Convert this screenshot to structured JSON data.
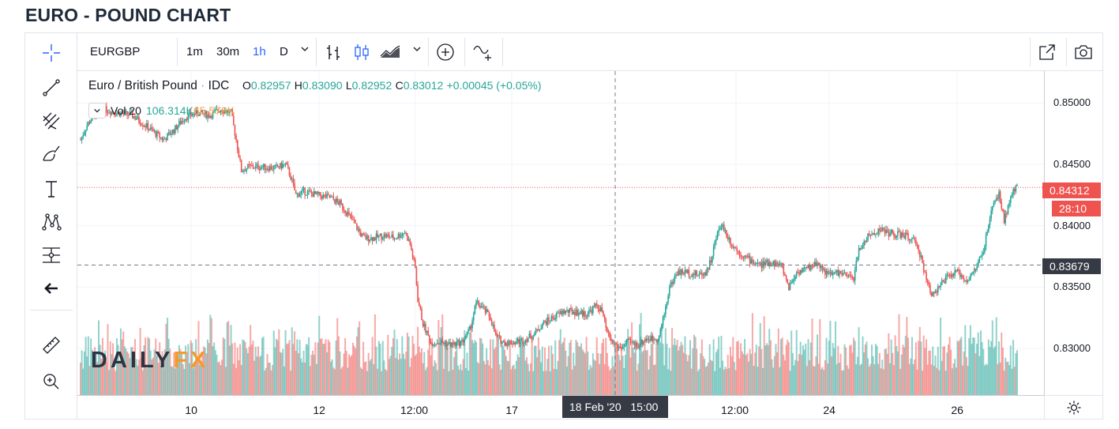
{
  "page_title": "EURO - POUND CHART",
  "toolbar": {
    "symbol": "EURGBP",
    "intervals": [
      "1m",
      "30m",
      "1h",
      "D"
    ],
    "active_interval": "1h",
    "icons": [
      "crosshair-icon",
      "trend-line-icon",
      "fib-icon",
      "brush-icon",
      "text-icon",
      "pattern-icon",
      "measure-icon",
      "back-arrow-icon",
      "ruler-icon",
      "zoom-in-icon",
      "bar-style-icon",
      "candle-style-icon",
      "area-style-icon",
      "compare-icon",
      "indicator-icon",
      "fullscreen-icon",
      "camera-icon",
      "gear-icon"
    ]
  },
  "legend": {
    "name": "Euro / British Pound",
    "sep": "·",
    "source": "IDC",
    "o_label": "O",
    "o": "0.82957",
    "h_label": "H",
    "h": "0.83090",
    "l_label": "L",
    "l": "0.82952",
    "c_label": "C",
    "c": "0.83012",
    "change": "+0.00045 (+0.05%)"
  },
  "volume": {
    "label": "Vol 20",
    "value1": "106.314K",
    "value2": "65.578K"
  },
  "watermark": {
    "part1": "DAILY",
    "part2": "FX"
  },
  "colors": {
    "up": "#26a69a",
    "down": "#ef5350",
    "crosshair_label": "#363a45"
  },
  "chart_data": {
    "type": "candlestick",
    "y_axis_ticks": [
      "0.85000",
      "0.84500",
      "0.84000",
      "0.83500",
      "0.83000"
    ],
    "ylim": [
      0.8262,
      0.8526
    ],
    "x_axis_ticks": [
      "10",
      "12",
      "12:00",
      "17",
      "12:00",
      "24",
      "26"
    ],
    "current_price": "0.84312",
    "countdown": "28:10",
    "crosshair_price": "0.83679",
    "crosshair_time": "18 Feb '20   15:00",
    "close_path": [
      [
        0,
        0.847
      ],
      [
        4,
        0.848
      ],
      [
        10,
        0.849
      ],
      [
        18,
        0.8495
      ],
      [
        28,
        0.8492
      ],
      [
        40,
        0.849
      ],
      [
        52,
        0.848
      ],
      [
        64,
        0.847
      ],
      [
        72,
        0.8478
      ],
      [
        80,
        0.8488
      ],
      [
        90,
        0.8492
      ],
      [
        100,
        0.849
      ],
      [
        108,
        0.8495
      ],
      [
        116,
        0.8492
      ],
      [
        120,
        0.847
      ],
      [
        124,
        0.8445
      ],
      [
        130,
        0.8448
      ],
      [
        140,
        0.8448
      ],
      [
        150,
        0.8447
      ],
      [
        158,
        0.845
      ],
      [
        162,
        0.844
      ],
      [
        166,
        0.8425
      ],
      [
        172,
        0.8428
      ],
      [
        182,
        0.8425
      ],
      [
        192,
        0.8423
      ],
      [
        200,
        0.8418
      ],
      [
        206,
        0.841
      ],
      [
        212,
        0.84
      ],
      [
        218,
        0.839
      ],
      [
        226,
        0.839
      ],
      [
        234,
        0.8392
      ],
      [
        242,
        0.839
      ],
      [
        250,
        0.8395
      ],
      [
        254,
        0.8385
      ],
      [
        258,
        0.8365
      ],
      [
        260,
        0.834
      ],
      [
        264,
        0.832
      ],
      [
        270,
        0.8305
      ],
      [
        278,
        0.8305
      ],
      [
        286,
        0.8303
      ],
      [
        294,
        0.8305
      ],
      [
        300,
        0.8315
      ],
      [
        305,
        0.8337
      ],
      [
        310,
        0.8333
      ],
      [
        316,
        0.8325
      ],
      [
        320,
        0.831
      ],
      [
        326,
        0.8305
      ],
      [
        334,
        0.8305
      ],
      [
        342,
        0.8307
      ],
      [
        350,
        0.8312
      ],
      [
        356,
        0.832
      ],
      [
        364,
        0.8325
      ],
      [
        372,
        0.833
      ],
      [
        380,
        0.833
      ],
      [
        390,
        0.8328
      ],
      [
        398,
        0.8335
      ],
      [
        402,
        0.833
      ],
      [
        406,
        0.8312
      ],
      [
        410,
        0.8305
      ],
      [
        416,
        0.83
      ],
      [
        422,
        0.8305
      ],
      [
        430,
        0.8303
      ],
      [
        436,
        0.8308
      ],
      [
        442,
        0.8308
      ],
      [
        446,
        0.831
      ],
      [
        450,
        0.8328
      ],
      [
        454,
        0.835
      ],
      [
        460,
        0.8362
      ],
      [
        468,
        0.8362
      ],
      [
        476,
        0.836
      ],
      [
        482,
        0.8362
      ],
      [
        486,
        0.8372
      ],
      [
        490,
        0.839
      ],
      [
        494,
        0.8402
      ],
      [
        498,
        0.8393
      ],
      [
        502,
        0.8385
      ],
      [
        508,
        0.8378
      ],
      [
        516,
        0.8372
      ],
      [
        524,
        0.8368
      ],
      [
        532,
        0.837
      ],
      [
        540,
        0.8368
      ],
      [
        546,
        0.835
      ],
      [
        552,
        0.8362
      ],
      [
        560,
        0.8365
      ],
      [
        568,
        0.837
      ],
      [
        576,
        0.836
      ],
      [
        584,
        0.8362
      ],
      [
        592,
        0.8358
      ],
      [
        596,
        0.8358
      ],
      [
        600,
        0.838
      ],
      [
        606,
        0.839
      ],
      [
        616,
        0.8397
      ],
      [
        626,
        0.8393
      ],
      [
        636,
        0.8392
      ],
      [
        642,
        0.8388
      ],
      [
        648,
        0.8375
      ],
      [
        652,
        0.8355
      ],
      [
        656,
        0.8345
      ],
      [
        662,
        0.835
      ],
      [
        668,
        0.8358
      ],
      [
        676,
        0.8362
      ],
      [
        684,
        0.8355
      ],
      [
        690,
        0.8365
      ],
      [
        696,
        0.838
      ],
      [
        700,
        0.84
      ],
      [
        704,
        0.842
      ],
      [
        708,
        0.8425
      ],
      [
        712,
        0.8405
      ],
      [
        716,
        0.8418
      ],
      [
        720,
        0.843
      ],
      [
        722,
        0.8431
      ]
    ]
  }
}
